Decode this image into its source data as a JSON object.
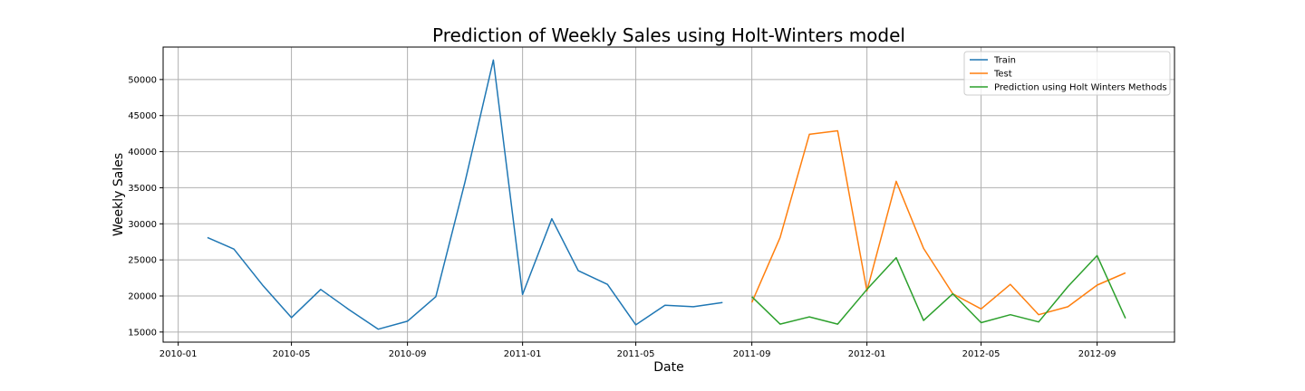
{
  "chart_data": {
    "type": "line",
    "title": "Prediction of Weekly Sales using Holt-Winters model",
    "xlabel": "Date",
    "ylabel": "Weekly Sales",
    "grid": true,
    "legend_position": "top-right",
    "x_ticks": [
      "2010-01",
      "2010-05",
      "2010-09",
      "2011-01",
      "2011-05",
      "2011-09",
      "2012-01",
      "2012-05",
      "2012-09"
    ],
    "y_ticks": [
      15000,
      20000,
      25000,
      30000,
      35000,
      40000,
      45000,
      50000
    ],
    "xlim": [
      "2009-12-16",
      "2012-11-22"
    ],
    "ylim": [
      13600,
      54500
    ],
    "series": [
      {
        "name": "Train",
        "color": "#1f77b4",
        "x": [
          "2010-02-01",
          "2010-03-01",
          "2010-04-01",
          "2010-05-01",
          "2010-06-01",
          "2010-07-01",
          "2010-08-01",
          "2010-09-01",
          "2010-10-01",
          "2010-11-01",
          "2010-12-01",
          "2011-01-01",
          "2011-02-01",
          "2011-03-01",
          "2011-04-01",
          "2011-05-01",
          "2011-06-01",
          "2011-07-01",
          "2011-08-01"
        ],
        "values": [
          28100,
          26500,
          21400,
          17000,
          20900,
          18100,
          15400,
          16500,
          19900,
          35800,
          52700,
          20200,
          30700,
          23500,
          21600,
          16000,
          18700,
          18500,
          19100
        ]
      },
      {
        "name": "Test",
        "color": "#ff7f0e",
        "x": [
          "2011-09-01",
          "2011-10-01",
          "2011-11-01",
          "2011-12-01",
          "2012-01-01",
          "2012-02-01",
          "2012-03-01",
          "2012-04-01",
          "2012-05-01",
          "2012-06-01",
          "2012-07-01",
          "2012-08-01",
          "2012-09-01",
          "2012-10-01"
        ],
        "values": [
          19100,
          28100,
          42400,
          42900,
          20700,
          35900,
          26600,
          20300,
          18200,
          21600,
          17400,
          18500,
          21500,
          23200
        ]
      },
      {
        "name": "Prediction using Holt Winters Methods",
        "color": "#2ca02c",
        "x": [
          "2011-09-01",
          "2011-10-01",
          "2011-11-01",
          "2011-12-01",
          "2012-01-01",
          "2012-02-01",
          "2012-03-01",
          "2012-04-01",
          "2012-05-01",
          "2012-06-01",
          "2012-07-01",
          "2012-08-01",
          "2012-09-01",
          "2012-10-01"
        ],
        "values": [
          19900,
          16100,
          17100,
          16100,
          20900,
          25300,
          16600,
          20300,
          16300,
          17400,
          16400,
          21300,
          25600,
          16900
        ]
      }
    ]
  }
}
